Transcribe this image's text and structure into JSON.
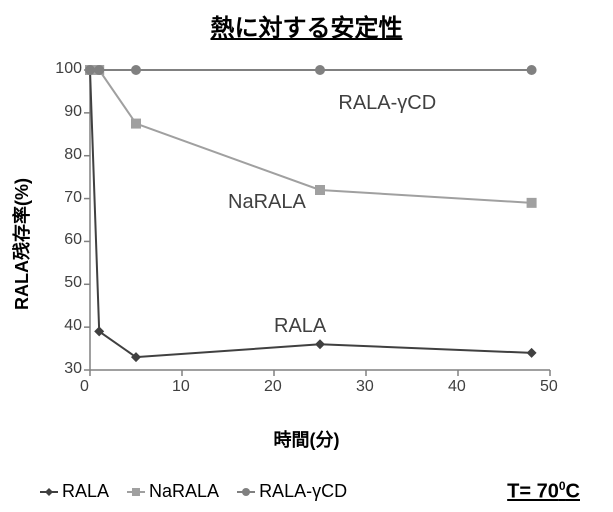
{
  "title": "熱に対する安定性",
  "x_axis": {
    "label": "時間(分)",
    "min": 0,
    "max": 50,
    "tick_step": 10,
    "ticks": [
      0,
      10,
      20,
      30,
      40,
      50
    ]
  },
  "y_axis": {
    "label": "RALA残存率(%)",
    "min": 30,
    "max": 100,
    "tick_step": 10,
    "ticks": [
      30,
      40,
      50,
      60,
      70,
      80,
      90,
      100
    ]
  },
  "background_color": "#ffffff",
  "axis_color": "#808080",
  "grid_color": "#d0d0d0",
  "tick_length": 6,
  "line_width": 2,
  "marker_size": 6,
  "label_fontsize": 18,
  "title_fontsize": 24,
  "tick_fontsize": 16,
  "series": [
    {
      "name": "RALA",
      "marker": "diamond",
      "color": "#404040",
      "x": [
        0,
        1,
        5,
        25,
        48
      ],
      "y": [
        100,
        39,
        33,
        36,
        34
      ],
      "annotation": {
        "text": "RALA",
        "x": 20,
        "y": 40
      }
    },
    {
      "name": "NaRALA",
      "marker": "square",
      "color": "#a0a0a0",
      "x": [
        0,
        1,
        5,
        25,
        48
      ],
      "y": [
        100,
        100,
        87.5,
        72,
        69
      ],
      "annotation": {
        "text": "NaRALA",
        "x": 15,
        "y": 69
      }
    },
    {
      "name": "RALA-γCD",
      "marker": "circle",
      "color": "#808080",
      "x": [
        0,
        1,
        5,
        25,
        48
      ],
      "y": [
        100,
        100,
        100,
        100,
        100
      ],
      "annotation": {
        "text": "RALA-γCD",
        "x": 27,
        "y": 92
      }
    }
  ],
  "legend": {
    "items": [
      {
        "label": "RALA",
        "marker": "diamond",
        "color": "#404040"
      },
      {
        "label": "NaRALA",
        "marker": "square",
        "color": "#a0a0a0"
      },
      {
        "label": "RALA-γCD",
        "marker": "circle",
        "color": "#808080"
      }
    ],
    "condition_html": "T= 70<sup>0</sup>C",
    "condition_text": "T= 70⁰C"
  }
}
